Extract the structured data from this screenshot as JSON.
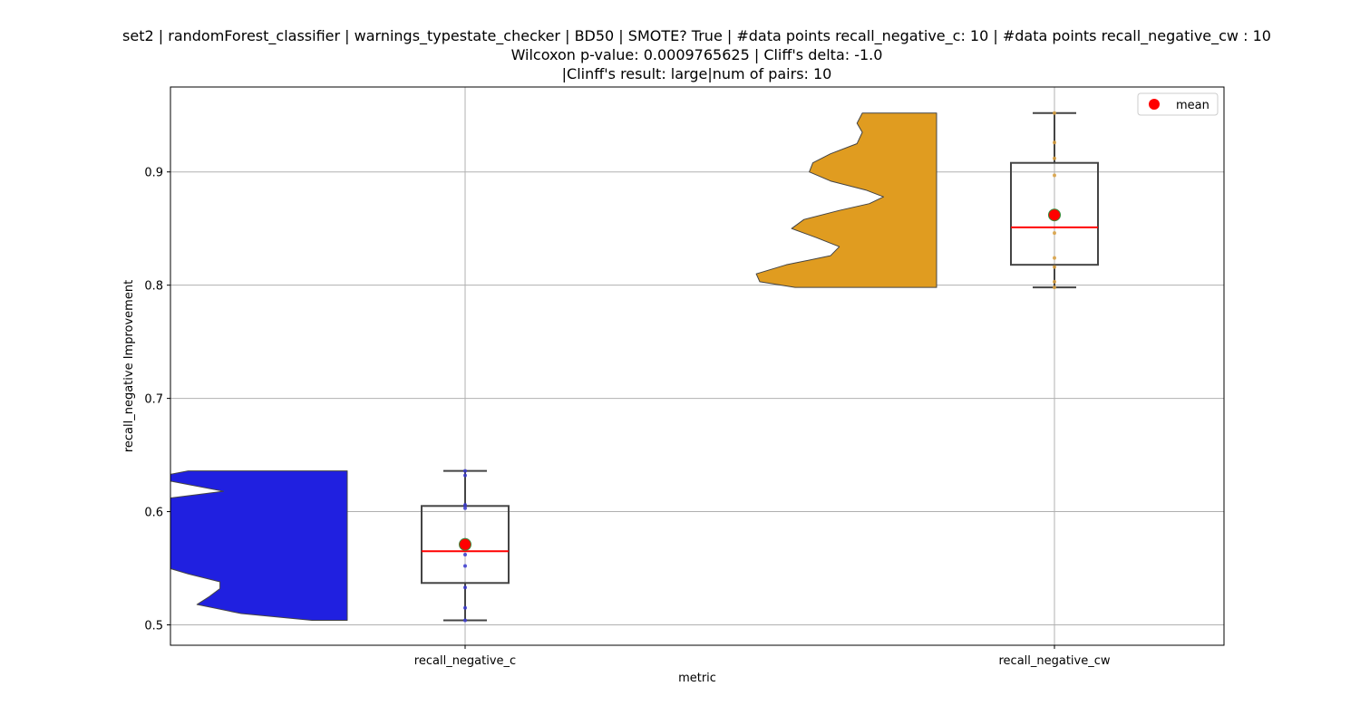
{
  "chart_data": {
    "type": "violin+box",
    "title_lines": [
      "set2 | randomForest_classifier | warnings_typestate_checker | BD50 | SMOTE? True | #data points recall_negative_c: 10 | #data points recall_negative_cw : 10",
      "Wilcoxon p-value: 0.0009765625 | Cliff's delta: -1.0",
      "|Clinff's result: large|num of pairs: 10"
    ],
    "xlabel": "metric",
    "ylabel": "recall_negative Improvement",
    "ylim": [
      0.482,
      0.975
    ],
    "yticks": [
      0.5,
      0.6,
      0.7,
      0.8,
      0.9
    ],
    "ytick_labels": [
      "0.5",
      "0.6",
      "0.7",
      "0.8",
      "0.9"
    ],
    "grid": true,
    "legend": {
      "placement": "top-right",
      "entries": [
        {
          "label": "mean",
          "color": "#ff0000"
        }
      ]
    },
    "categories": [
      "recall_negative_c",
      "recall_negative_cw"
    ],
    "series": [
      {
        "category": "recall_negative_c",
        "violin_color": "#2020e0",
        "point_color": "#3a3ad0",
        "box": {
          "whisker_low": 0.504,
          "q1": 0.537,
          "median": 0.565,
          "q3": 0.605,
          "whisker_high": 0.636
        },
        "mean": 0.571,
        "points": [
          0.504,
          0.515,
          0.533,
          0.552,
          0.562,
          0.575,
          0.603,
          0.606,
          0.632,
          0.636
        ],
        "density": [
          [
            0.504,
            0.2
          ],
          [
            0.51,
            0.6
          ],
          [
            0.518,
            0.85
          ],
          [
            0.525,
            0.78
          ],
          [
            0.532,
            0.72
          ],
          [
            0.538,
            0.72
          ],
          [
            0.545,
            0.9
          ],
          [
            0.552,
            1.05
          ],
          [
            0.56,
            1.25
          ],
          [
            0.567,
            1.3
          ],
          [
            0.575,
            1.08
          ],
          [
            0.583,
            1.02
          ],
          [
            0.59,
            1.05
          ],
          [
            0.598,
            1.18
          ],
          [
            0.605,
            1.22
          ],
          [
            0.612,
            1.0
          ],
          [
            0.618,
            0.7
          ],
          [
            0.624,
            0.9
          ],
          [
            0.63,
            1.1
          ],
          [
            0.636,
            0.9
          ]
        ]
      },
      {
        "category": "recall_negative_cw",
        "violin_color": "#e09c20",
        "point_color": "#d9a040",
        "box": {
          "whisker_low": 0.798,
          "q1": 0.818,
          "median": 0.851,
          "q3": 0.908,
          "whisker_high": 0.952
        },
        "mean": 0.862,
        "points": [
          0.798,
          0.803,
          0.816,
          0.824,
          0.846,
          0.862,
          0.897,
          0.912,
          0.926,
          0.952
        ],
        "density": [
          [
            0.798,
            0.8
          ],
          [
            0.803,
            1.0
          ],
          [
            0.81,
            1.02
          ],
          [
            0.818,
            0.85
          ],
          [
            0.826,
            0.6
          ],
          [
            0.834,
            0.55
          ],
          [
            0.842,
            0.68
          ],
          [
            0.85,
            0.82
          ],
          [
            0.858,
            0.75
          ],
          [
            0.866,
            0.55
          ],
          [
            0.872,
            0.38
          ],
          [
            0.878,
            0.3
          ],
          [
            0.884,
            0.4
          ],
          [
            0.892,
            0.6
          ],
          [
            0.9,
            0.72
          ],
          [
            0.908,
            0.7
          ],
          [
            0.916,
            0.6
          ],
          [
            0.925,
            0.45
          ],
          [
            0.935,
            0.42
          ],
          [
            0.943,
            0.45
          ],
          [
            0.952,
            0.42
          ]
        ]
      }
    ]
  }
}
